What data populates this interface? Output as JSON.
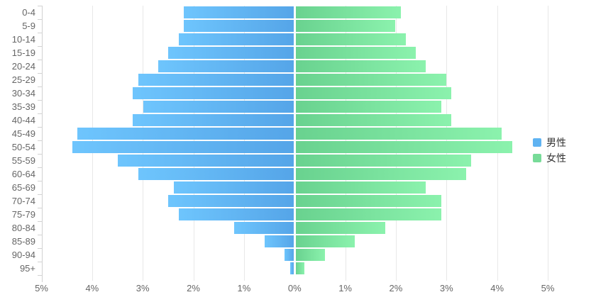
{
  "chart_data": {
    "type": "bar",
    "variant": "population-pyramid",
    "orientation": "horizontal",
    "unit": "%",
    "title": "",
    "xlabel": "",
    "ylabel": "",
    "grid": true,
    "legend_position": "right-middle",
    "axis_max_percent": 5,
    "x_tick_labels": [
      "5%",
      "4%",
      "3%",
      "2%",
      "1%",
      "0%",
      "1%",
      "2%",
      "3%",
      "4%",
      "5%"
    ],
    "categories": [
      "0-4",
      "5-9",
      "10-14",
      "15-19",
      "20-24",
      "25-29",
      "30-34",
      "35-39",
      "40-44",
      "45-49",
      "50-54",
      "55-59",
      "60-64",
      "65-69",
      "70-74",
      "75-79",
      "80-84",
      "85-89",
      "90-94",
      "95+"
    ],
    "series": [
      {
        "name": "男性",
        "side": "left",
        "legend_color": "#5fb3f2",
        "gradient_start": "#6ec5fd",
        "gradient_end": "#55a5e8",
        "values": [
          2.2,
          2.2,
          2.3,
          2.5,
          2.7,
          3.1,
          3.2,
          3.0,
          3.2,
          4.3,
          4.4,
          3.5,
          3.1,
          2.4,
          2.5,
          2.3,
          1.2,
          0.6,
          0.2,
          0.1
        ]
      },
      {
        "name": "女性",
        "side": "right",
        "legend_color": "#77db98",
        "gradient_start": "#69d28f",
        "gradient_end": "#8bf2ad",
        "values": [
          2.1,
          2.0,
          2.2,
          2.4,
          2.6,
          3.0,
          3.1,
          2.9,
          3.1,
          4.1,
          4.3,
          3.5,
          3.4,
          2.6,
          2.9,
          2.9,
          1.8,
          1.2,
          0.6,
          0.2
        ]
      }
    ],
    "colors": {
      "grid": "#e8e8e8",
      "axis": "#d2d2d2",
      "tick_label": "#666666",
      "legend_text": "#333333",
      "background": "#ffffff"
    }
  }
}
